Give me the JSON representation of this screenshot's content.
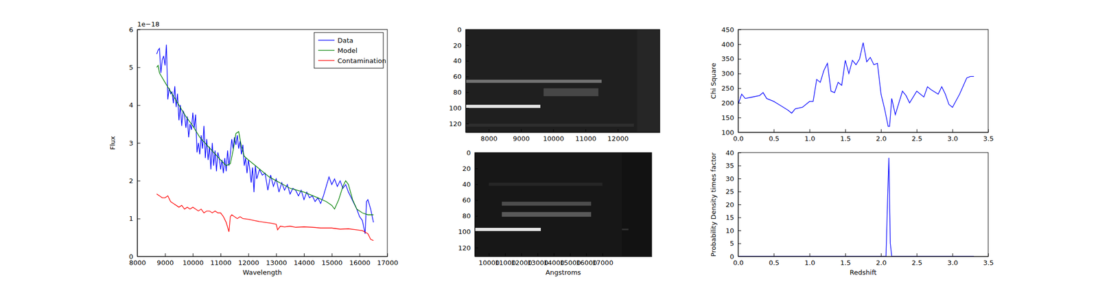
{
  "chart_data": [
    {
      "type": "line",
      "x_label": "Wavelength",
      "y_label": "Flux",
      "offset_text": "1e−18",
      "xlim": [
        8000,
        17000
      ],
      "xticks": [
        8000,
        9000,
        10000,
        11000,
        12000,
        13000,
        14000,
        15000,
        16000,
        17000
      ],
      "ylim": [
        0,
        6
      ],
      "yticks": [
        0,
        1,
        2,
        3,
        4,
        5,
        6
      ],
      "legend": "upper right",
      "series": [
        {
          "name": "Data",
          "color": "#0000ff",
          "x": [
            8700,
            8750,
            8800,
            8850,
            8900,
            8950,
            9000,
            9050,
            9100,
            9150,
            9200,
            9250,
            9300,
            9350,
            9400,
            9450,
            9500,
            9550,
            9600,
            9650,
            9700,
            9750,
            9800,
            9850,
            9900,
            9950,
            10000,
            10050,
            10100,
            10150,
            10200,
            10250,
            10300,
            10350,
            10400,
            10450,
            10500,
            10550,
            10600,
            10650,
            10700,
            10750,
            10800,
            10850,
            10900,
            10950,
            11000,
            11050,
            11100,
            11150,
            11200,
            11250,
            11300,
            11350,
            11400,
            11450,
            11500,
            11550,
            11600,
            11650,
            11700,
            11750,
            11800,
            11850,
            11900,
            11950,
            12000,
            12050,
            12100,
            12150,
            12200,
            12250,
            12300,
            12400,
            12500,
            12600,
            12700,
            12800,
            12900,
            13000,
            13100,
            13200,
            13300,
            13400,
            13500,
            13600,
            13700,
            13800,
            13900,
            14000,
            14100,
            14200,
            14300,
            14400,
            14500,
            14600,
            14700,
            14800,
            14900,
            15000,
            15100,
            15200,
            15300,
            15400,
            15500,
            15600,
            15700,
            15800,
            15900,
            16000,
            16100,
            16200,
            16250,
            16300,
            16400,
            16500
          ],
          "values": [
            5.35,
            5.45,
            5.5,
            4.85,
            5.2,
            5.3,
            5.05,
            5.6,
            4.15,
            4.45,
            4.3,
            4.35,
            4.05,
            4.5,
            3.95,
            4.3,
            3.6,
            4.0,
            3.45,
            3.85,
            3.75,
            3.4,
            3.7,
            3.15,
            3.5,
            3.35,
            3.8,
            3.4,
            3.75,
            2.75,
            3.0,
            2.7,
            3.2,
            2.85,
            3.45,
            2.6,
            3.1,
            2.55,
            2.9,
            2.3,
            3.0,
            2.4,
            2.8,
            2.25,
            2.75,
            2.6,
            2.3,
            2.55,
            2.2,
            2.6,
            2.25,
            2.8,
            2.4,
            2.7,
            3.1,
            2.85,
            3.15,
            2.95,
            3.2,
            2.85,
            3.05,
            2.7,
            2.95,
            2.4,
            2.6,
            2.2,
            2.55,
            2.3,
            1.95,
            2.35,
            1.7,
            2.4,
            2.05,
            2.3,
            2.15,
            2.2,
            1.75,
            2.15,
            1.85,
            2.05,
            1.7,
            1.95,
            1.75,
            1.9,
            1.65,
            1.8,
            1.75,
            1.6,
            1.75,
            1.5,
            1.7,
            1.55,
            1.6,
            1.45,
            1.55,
            1.4,
            1.6,
            1.85,
            2.1,
            1.9,
            2.05,
            1.85,
            2.0,
            1.8,
            1.9,
            1.7,
            1.55,
            1.4,
            1.25,
            1.05,
            0.95,
            0.6,
            1.45,
            1.5,
            1.25,
            0.9
          ]
        },
        {
          "name": "Model",
          "color": "#008000",
          "x": [
            8700,
            8750,
            8800,
            9000,
            9250,
            9500,
            9750,
            10000,
            10250,
            10500,
            10750,
            11000,
            11200,
            11350,
            11450,
            11550,
            11650,
            11750,
            11850,
            12000,
            12250,
            12500,
            12750,
            13000,
            13250,
            13500,
            14000,
            14500,
            14800,
            15000,
            15100,
            15250,
            15400,
            15500,
            15600,
            15750,
            15900,
            16100,
            16300,
            16500
          ],
          "values": [
            5.0,
            5.05,
            4.85,
            4.6,
            4.3,
            4.0,
            3.7,
            3.45,
            3.15,
            2.95,
            2.75,
            2.55,
            2.4,
            2.45,
            2.8,
            3.25,
            3.3,
            2.9,
            2.65,
            2.55,
            2.4,
            2.25,
            2.1,
            2.0,
            1.9,
            1.8,
            1.7,
            1.55,
            1.45,
            1.35,
            1.25,
            1.5,
            1.85,
            2.0,
            1.9,
            1.5,
            1.25,
            1.15,
            1.1,
            1.1
          ]
        },
        {
          "name": "Contamination",
          "color": "#ff0000",
          "x": [
            8700,
            8800,
            8900,
            9000,
            9100,
            9200,
            9300,
            9400,
            9500,
            9600,
            9700,
            9800,
            9900,
            10000,
            10100,
            10200,
            10300,
            10400,
            10500,
            10600,
            10700,
            10800,
            10900,
            11000,
            11100,
            11200,
            11300,
            11350,
            11400,
            11500,
            11600,
            11700,
            11800,
            12000,
            12200,
            12400,
            12600,
            12800,
            13000,
            13050,
            13150,
            13300,
            13500,
            13700,
            14000,
            14300,
            14600,
            15000,
            15300,
            15600,
            15900,
            16100,
            16300,
            16400,
            16500
          ],
          "values": [
            1.65,
            1.6,
            1.55,
            1.55,
            1.6,
            1.45,
            1.4,
            1.35,
            1.3,
            1.35,
            1.25,
            1.3,
            1.25,
            1.3,
            1.25,
            1.2,
            1.25,
            1.15,
            1.2,
            1.2,
            1.15,
            1.2,
            1.15,
            1.15,
            1.05,
            0.9,
            0.65,
            1.05,
            1.1,
            1.05,
            1.0,
            1.05,
            1.0,
            0.98,
            0.95,
            0.92,
            0.9,
            0.88,
            0.85,
            0.7,
            0.8,
            0.78,
            0.8,
            0.77,
            0.78,
            0.77,
            0.75,
            0.75,
            0.72,
            0.73,
            0.7,
            0.68,
            0.6,
            0.45,
            0.42
          ]
        }
      ]
    },
    {
      "type": "image",
      "xlim": [
        7283,
        13304
      ],
      "xticks": [
        8000,
        9000,
        10000,
        11000,
        12000
      ],
      "ylim": [
        131,
        0
      ],
      "yticks": [
        0,
        20,
        40,
        60,
        80,
        100,
        120
      ],
      "cells": [
        {
          "x0": 7283,
          "x1": 13304,
          "y0": 0,
          "y1": 131,
          "value": 0.12
        },
        {
          "x0": 12600,
          "x1": 13304,
          "y0": 0,
          "y1": 131,
          "value": 0.15
        },
        {
          "x0": 7283,
          "x1": 12500,
          "y0": 120,
          "y1": 124,
          "value": 0.18
        },
        {
          "x0": 9700,
          "x1": 11400,
          "y0": 75,
          "y1": 85,
          "value": 0.28
        },
        {
          "x0": 7283,
          "x1": 11500,
          "y0": 64,
          "y1": 68,
          "value": 0.45
        },
        {
          "x0": 7283,
          "x1": 9600,
          "y0": 96,
          "y1": 100,
          "value": 0.9
        }
      ]
    },
    {
      "type": "image",
      "x_label": "Angstroms",
      "xlim": [
        9134,
        20030
      ],
      "xticks": [
        10000,
        11000,
        12000,
        13000,
        14000,
        15000,
        16000,
        17000
      ],
      "ylim": [
        131,
        0
      ],
      "yticks": [
        0,
        20,
        40,
        60,
        80,
        100,
        120
      ],
      "cells": [
        {
          "x0": 9134,
          "x1": 20030,
          "y0": 0,
          "y1": 131,
          "value": 0.09
        },
        {
          "x0": 18200,
          "x1": 20030,
          "y0": 0,
          "y1": 131,
          "value": 0.07
        },
        {
          "x0": 10000,
          "x1": 17000,
          "y0": 38,
          "y1": 42,
          "value": 0.15
        },
        {
          "x0": 10800,
          "x1": 16300,
          "y0": 62,
          "y1": 67,
          "value": 0.3
        },
        {
          "x0": 10800,
          "x1": 16300,
          "y0": 75,
          "y1": 81,
          "value": 0.35
        },
        {
          "x0": 18200,
          "x1": 18600,
          "y0": 96,
          "y1": 98,
          "value": 0.2
        },
        {
          "x0": 9134,
          "x1": 13200,
          "y0": 95,
          "y1": 99,
          "value": 0.9
        }
      ]
    },
    {
      "type": "line",
      "y_label": "Chi Square",
      "xlim": [
        0,
        3.5
      ],
      "xticks": [
        {
          "value": 0,
          "label": "0.0"
        },
        {
          "value": 0.5,
          "label": "0.5"
        },
        {
          "value": 1,
          "label": "1.0"
        },
        {
          "value": 1.5,
          "label": "1.5"
        },
        {
          "value": 2,
          "label": "2.0"
        },
        {
          "value": 2.5,
          "label": "2.5"
        },
        {
          "value": 3,
          "label": "3.0"
        },
        {
          "value": 3.5,
          "label": "3.5"
        }
      ],
      "ylim": [
        100,
        450
      ],
      "yticks": [
        100,
        150,
        200,
        250,
        300,
        350,
        400,
        450
      ],
      "series": [
        {
          "color": "#0000ff",
          "x": [
            0,
            0.05,
            0.1,
            0.2,
            0.3,
            0.35,
            0.4,
            0.5,
            0.6,
            0.7,
            0.75,
            0.8,
            0.9,
            1.0,
            1.05,
            1.1,
            1.15,
            1.2,
            1.25,
            1.3,
            1.35,
            1.4,
            1.45,
            1.5,
            1.55,
            1.6,
            1.65,
            1.7,
            1.75,
            1.8,
            1.85,
            1.9,
            1.95,
            2.0,
            2.05,
            2.1,
            2.12,
            2.15,
            2.2,
            2.3,
            2.35,
            2.4,
            2.5,
            2.6,
            2.65,
            2.7,
            2.8,
            2.85,
            2.9,
            2.95,
            3.0,
            3.1,
            3.2,
            3.25,
            3.3
          ],
          "values": [
            195,
            230,
            215,
            220,
            225,
            235,
            215,
            205,
            190,
            175,
            165,
            180,
            185,
            205,
            205,
            280,
            270,
            310,
            335,
            240,
            235,
            270,
            260,
            345,
            300,
            345,
            330,
            350,
            405,
            340,
            355,
            330,
            335,
            230,
            180,
            120,
            120,
            215,
            160,
            240,
            225,
            200,
            240,
            220,
            255,
            245,
            230,
            255,
            230,
            195,
            185,
            230,
            285,
            290,
            290
          ]
        }
      ]
    },
    {
      "type": "line",
      "x_label": "Redshift",
      "y_label": "Probability Density times factor",
      "xlim": [
        0,
        3.5
      ],
      "xticks": [
        {
          "value": 0,
          "label": "0.0"
        },
        {
          "value": 0.5,
          "label": "0.5"
        },
        {
          "value": 1,
          "label": "1.0"
        },
        {
          "value": 1.5,
          "label": "1.5"
        },
        {
          "value": 2,
          "label": "2.0"
        },
        {
          "value": 2.5,
          "label": "2.5"
        },
        {
          "value": 3,
          "label": "3.0"
        },
        {
          "value": 3.5,
          "label": "3.5"
        }
      ],
      "ylim": [
        0,
        40
      ],
      "yticks": [
        0,
        5,
        10,
        15,
        20,
        25,
        30,
        35,
        40
      ],
      "series": [
        {
          "color": "#0000ff",
          "x": [
            0,
            2.07,
            2.09,
            2.11,
            2.13,
            2.15,
            3.3
          ],
          "values": [
            0,
            0,
            20,
            38,
            5,
            0,
            0
          ]
        }
      ]
    }
  ]
}
